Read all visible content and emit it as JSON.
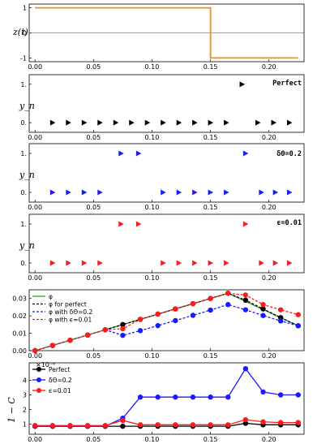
{
  "chart_data": [
    {
      "type": "line",
      "ylabel": "z(t)",
      "xlim": [
        -0.005,
        0.23
      ],
      "ylim": [
        -1.15,
        1.15
      ],
      "x_ticks": [
        "0.00",
        "0.05",
        "0.10",
        "0.15",
        "0.20"
      ],
      "y_ticks": [
        "1",
        "0",
        "-1"
      ],
      "series": [
        {
          "color": "#f28c18",
          "x": [
            0,
            0.15,
            0.15,
            0.225
          ],
          "y": [
            1,
            1,
            -1,
            -1
          ]
        }
      ],
      "hlines": [
        0
      ]
    },
    {
      "type": "scatter",
      "title": "Perfect",
      "ylabel": "y_n",
      "marker": "triangle-right",
      "color": "#000000",
      "xlim": [
        -0.005,
        0.23
      ],
      "ylim": [
        -0.25,
        1.25
      ],
      "x_ticks": [
        "0.00",
        "0.05",
        "0.10",
        "0.15",
        "0.20"
      ],
      "y_ticks": [
        "1.",
        "0."
      ],
      "x": [
        0.015,
        0.0285,
        0.042,
        0.0555,
        0.069,
        0.0825,
        0.096,
        0.1095,
        0.123,
        0.1365,
        0.15,
        0.1635,
        0.177,
        0.1905,
        0.204,
        0.2175
      ],
      "y": [
        0,
        0,
        0,
        0,
        0,
        0,
        0,
        0,
        0,
        0,
        0,
        0,
        1,
        0,
        0,
        0
      ]
    },
    {
      "type": "scatter",
      "title": "δΘ=0.2",
      "ylabel": "y_n",
      "marker": "triangle-right",
      "color": "#1a1aff",
      "xlim": [
        -0.005,
        0.23
      ],
      "ylim": [
        -0.25,
        1.25
      ],
      "x_ticks": [
        "0.00",
        "0.05",
        "0.10",
        "0.15",
        "0.20"
      ],
      "y_ticks": [
        "1.",
        "0."
      ],
      "x": [
        0.015,
        0.0285,
        0.042,
        0.0555,
        0.0735,
        0.0885,
        0.1095,
        0.123,
        0.1365,
        0.15,
        0.1635,
        0.18,
        0.1935,
        0.2055,
        0.2175
      ],
      "y": [
        0,
        0,
        0,
        0,
        1,
        1,
        0,
        0,
        0,
        0,
        0,
        1,
        0,
        0,
        0
      ]
    },
    {
      "type": "scatter",
      "title": "ϵ=0.01",
      "ylabel": "y_n",
      "marker": "triangle-right",
      "color": "#ff1a1a",
      "xlim": [
        -0.005,
        0.23
      ],
      "ylim": [
        -0.25,
        1.25
      ],
      "x_ticks": [
        "0.00",
        "0.05",
        "0.10",
        "0.15",
        "0.20"
      ],
      "y_ticks": [
        "1.",
        "0."
      ],
      "x": [
        0.015,
        0.0285,
        0.042,
        0.0555,
        0.0735,
        0.0885,
        0.1095,
        0.123,
        0.1365,
        0.15,
        0.1635,
        0.18,
        0.1935,
        0.2055,
        0.2175
      ],
      "y": [
        0,
        0,
        0,
        0,
        1,
        1,
        0,
        0,
        0,
        0,
        0,
        1,
        0,
        0,
        0
      ]
    },
    {
      "type": "line",
      "xlim": [
        -0.005,
        0.23
      ],
      "ylim": [
        0,
        0.035
      ],
      "x_ticks": [
        "0.00",
        "0.05",
        "0.10",
        "0.15",
        "0.20"
      ],
      "y_ticks": [
        "0.00",
        "0.01",
        "0.02",
        "0.03"
      ],
      "legend_position": "top-left",
      "series": [
        {
          "name": "φ",
          "color": "#2ca02c",
          "style": "solid",
          "x": [
            0,
            0.165,
            0.225
          ],
          "y": [
            0,
            0.033,
            0.0143
          ]
        },
        {
          "name": "φ for perfect",
          "color": "#000000",
          "style": "dashed",
          "marker": "circle",
          "x": [
            0,
            0.015,
            0.03,
            0.045,
            0.06,
            0.075,
            0.09,
            0.105,
            0.12,
            0.135,
            0.15,
            0.165,
            0.18,
            0.195,
            0.21,
            0.225
          ],
          "y": [
            0,
            0.003,
            0.006,
            0.009,
            0.012,
            0.015,
            0.018,
            0.021,
            0.024,
            0.027,
            0.03,
            0.033,
            0.029,
            0.024,
            0.019,
            0.0143
          ]
        },
        {
          "name": "φ with δΘ=0.2",
          "color": "#1a1aff",
          "style": "dashed",
          "marker": "circle",
          "x": [
            0,
            0.015,
            0.03,
            0.045,
            0.06,
            0.075,
            0.09,
            0.105,
            0.12,
            0.135,
            0.15,
            0.165,
            0.18,
            0.195,
            0.21,
            0.225
          ],
          "y": [
            0,
            0.003,
            0.006,
            0.009,
            0.012,
            0.0088,
            0.0115,
            0.0144,
            0.0173,
            0.0203,
            0.0233,
            0.0265,
            0.0235,
            0.0202,
            0.0171,
            0.0143
          ]
        },
        {
          "name": "φ with ϵ=0.01",
          "color": "#ff1a1a",
          "style": "dashed",
          "marker": "circle",
          "x": [
            0,
            0.015,
            0.03,
            0.045,
            0.06,
            0.075,
            0.09,
            0.105,
            0.12,
            0.135,
            0.15,
            0.165,
            0.18,
            0.195,
            0.21,
            0.225
          ],
          "y": [
            0,
            0.003,
            0.006,
            0.009,
            0.012,
            0.0126,
            0.018,
            0.021,
            0.024,
            0.027,
            0.03,
            0.033,
            0.032,
            0.0265,
            0.0235,
            0.0207
          ]
        }
      ]
    },
    {
      "type": "line",
      "ylabel": "1 − C",
      "scale_label": "×10⁻⁶",
      "xlim": [
        -0.005,
        0.23
      ],
      "ylim": [
        0.3,
        5.2
      ],
      "x_ticks": [
        "0.00",
        "0.05",
        "0.10",
        "0.15",
        "0.20"
      ],
      "y_ticks": [
        "4",
        "3",
        "2",
        "1"
      ],
      "legend_position": "top-left",
      "series": [
        {
          "name": "Perfect",
          "color": "#000000",
          "marker": "circle",
          "x": [
            0,
            0.015,
            0.03,
            0.045,
            0.06,
            0.075,
            0.09,
            0.105,
            0.12,
            0.135,
            0.15,
            0.165,
            0.18,
            0.195,
            0.21,
            0.225
          ],
          "y": [
            0.85,
            0.85,
            0.85,
            0.85,
            0.85,
            0.85,
            0.85,
            0.85,
            0.85,
            0.85,
            0.85,
            0.85,
            1.05,
            0.95,
            0.95,
            0.95
          ]
        },
        {
          "name": "δΘ=0.2",
          "color": "#1a1aff",
          "marker": "circle",
          "x": [
            0,
            0.015,
            0.03,
            0.045,
            0.06,
            0.075,
            0.09,
            0.105,
            0.12,
            0.135,
            0.15,
            0.165,
            0.18,
            0.195,
            0.21,
            0.225
          ],
          "y": [
            0.85,
            0.85,
            0.85,
            0.85,
            0.85,
            1.4,
            2.85,
            2.85,
            2.85,
            2.85,
            2.85,
            2.85,
            4.8,
            3.2,
            3.0,
            3.0
          ]
        },
        {
          "name": "ϵ=0.01",
          "color": "#ff1a1a",
          "marker": "circle",
          "x": [
            0,
            0.015,
            0.03,
            0.045,
            0.06,
            0.075,
            0.09,
            0.105,
            0.12,
            0.135,
            0.15,
            0.165,
            0.18,
            0.195,
            0.21,
            0.225
          ],
          "y": [
            0.9,
            0.9,
            0.9,
            0.9,
            0.9,
            1.25,
            0.95,
            0.95,
            0.95,
            0.95,
            0.95,
            0.95,
            1.3,
            1.15,
            1.1,
            1.1
          ]
        }
      ]
    }
  ]
}
